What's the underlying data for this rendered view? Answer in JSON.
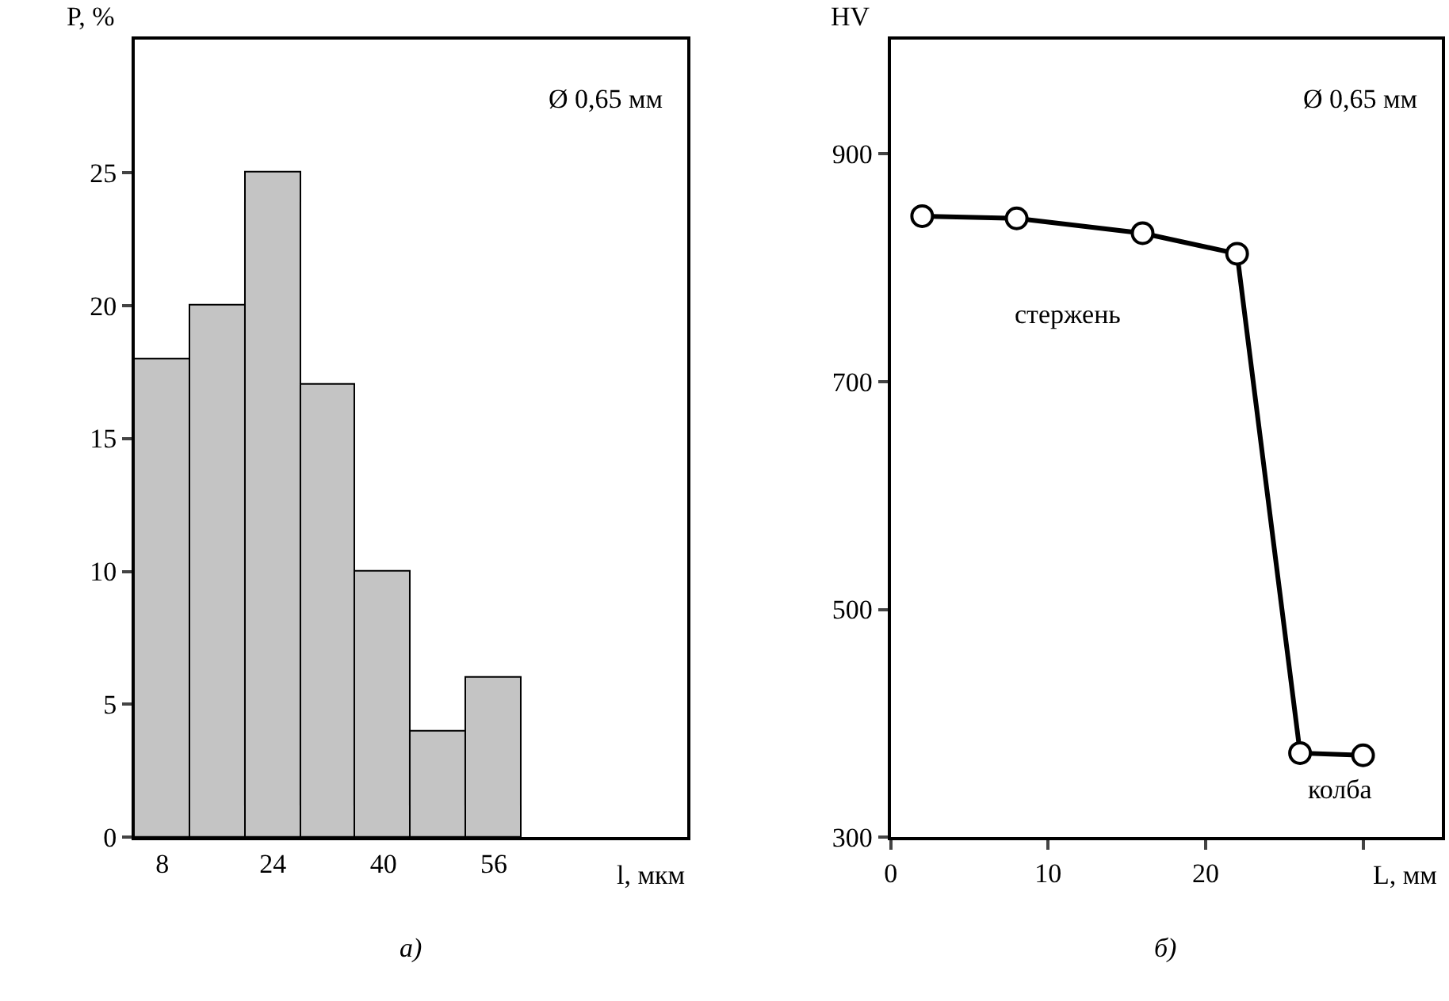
{
  "chart_data": [
    {
      "type": "histogram",
      "bins": [
        4,
        12,
        20,
        28,
        36,
        44,
        52,
        60
      ],
      "values": [
        18,
        20,
        25,
        17,
        10,
        4,
        6
      ],
      "color": "#c4c4c4",
      "xlim": [
        4,
        84
      ],
      "xticks": [
        8,
        24,
        40,
        56
      ],
      "ylim": [
        0,
        30
      ],
      "yticks": [
        0,
        5,
        10,
        15,
        20,
        25
      ],
      "xlabel": "l, мкм",
      "ylabel": "P, %",
      "annotations": [
        "Ø 0,65 мм",
        "а)"
      ]
    },
    {
      "type": "line",
      "x": [
        2,
        8,
        16,
        22,
        26,
        30
      ],
      "values": [
        845,
        843,
        830,
        812,
        374,
        372
      ],
      "color": "#000000",
      "marker": "circle",
      "line_style": "solid",
      "xlim": [
        0,
        35
      ],
      "xticks": [
        0,
        10,
        20,
        {
          "value": 30,
          "label": null
        }
      ],
      "ylim": [
        300,
        1000
      ],
      "yticks": [
        300,
        500,
        700,
        900
      ],
      "xlabel": "L, мм",
      "ylabel": "HV",
      "annotations": [
        "Ø 0,65 мм",
        "стержень",
        "колба",
        "б)"
      ]
    }
  ]
}
